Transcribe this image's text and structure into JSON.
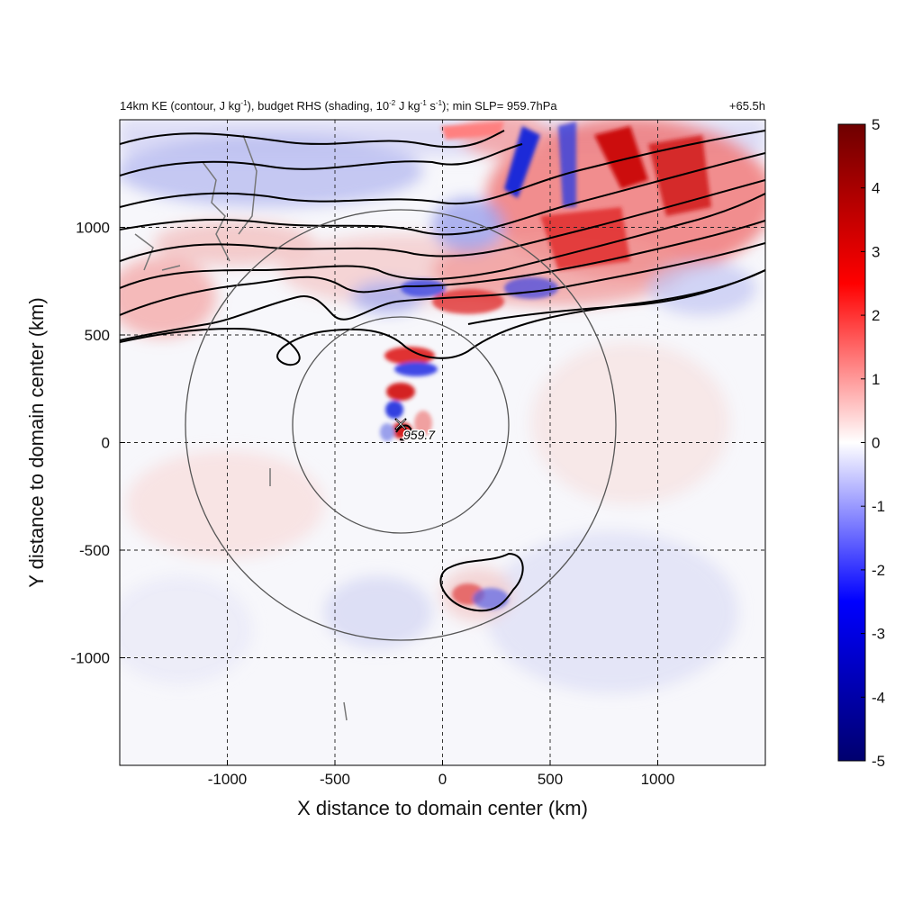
{
  "title": {
    "left_prefix": "14km KE (contour, J kg",
    "left_exp1": "-1",
    "left_mid1": "), budget RHS (shading, 10",
    "left_exp2": "-2",
    "left_mid2": " J kg",
    "left_exp3": "-1",
    "left_mid3": " s",
    "left_exp4": "-1",
    "left_suffix": "); min SLP= 959.7hPa",
    "right": "+65.5h"
  },
  "axes": {
    "xlabel": "X distance to domain center (km)",
    "ylabel": "Y distance to domain center (km)",
    "xlim": [
      -1500,
      1500
    ],
    "ylim": [
      -1500,
      1500
    ],
    "xticks": [
      -1000,
      -500,
      0,
      500,
      1000
    ],
    "yticks": [
      1000,
      500,
      0,
      -500,
      -1000
    ]
  },
  "colorbar": {
    "min": -5,
    "max": 5,
    "ticks": [
      5,
      4,
      3,
      2,
      1,
      0,
      -1,
      -2,
      -3,
      -4,
      -5
    ],
    "colors": [
      "#00006e",
      "#0000ff",
      "#ffffff",
      "#ff0000",
      "#6e0000"
    ]
  },
  "storm": {
    "marker": "x-marker",
    "label": "959.7",
    "center_km": [
      -190,
      80
    ]
  },
  "range_rings_km": [
    500,
    1000
  ],
  "chart_data": {
    "type": "heatmap",
    "title": "14km KE (contour, J kg-1), budget RHS (shading, 10-2 J kg-1 s-1); min SLP= 959.7hPa",
    "time_label": "+65.5h",
    "xlabel": "X distance to domain center (km)",
    "ylabel": "Y distance to domain center (km)",
    "xlim": [
      -1500,
      1500
    ],
    "ylim": [
      -1500,
      1500
    ],
    "colorbar_range": [
      -5,
      5
    ],
    "grid": true,
    "min_slp_hpa": 959.7
  }
}
